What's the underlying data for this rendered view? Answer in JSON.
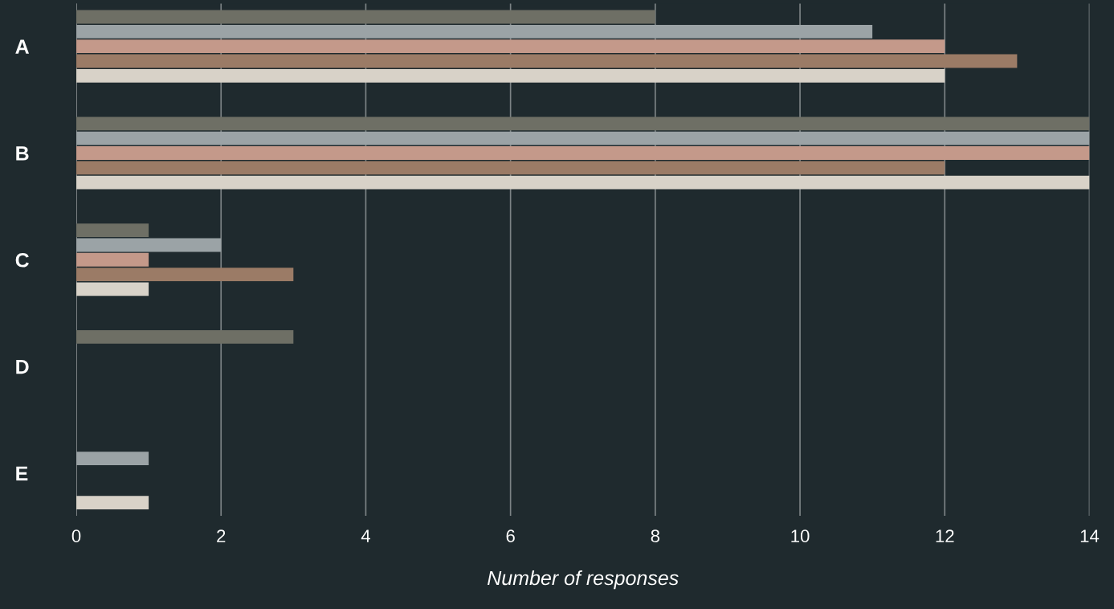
{
  "chart_data": {
    "type": "bar",
    "orientation": "horizontal",
    "xlabel": "Number of responses",
    "categories": [
      "A",
      "B",
      "C",
      "D",
      "E"
    ],
    "series": [
      {
        "color": "#6e6f65",
        "values": [
          8,
          14,
          1,
          3,
          null
        ]
      },
      {
        "color": "#9ba3a6",
        "values": [
          11,
          14,
          2,
          null,
          1
        ]
      },
      {
        "color": "#c4998a",
        "values": [
          12,
          14,
          1,
          null,
          null
        ]
      },
      {
        "color": "#9b7b66",
        "values": [
          13,
          12,
          3,
          null,
          null
        ]
      },
      {
        "color": "#d8d2c8",
        "values": [
          12,
          14,
          1,
          null,
          1
        ]
      }
    ],
    "xlim": [
      0,
      14
    ],
    "xticks": [
      0,
      2,
      4,
      6,
      8,
      10,
      12,
      14
    ],
    "grid": "x",
    "legend": false
  }
}
